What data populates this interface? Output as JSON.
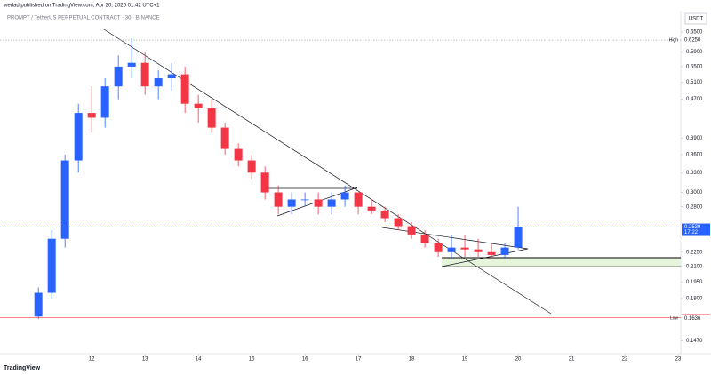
{
  "header": {
    "publisher": "wedad published on TradingView.com, Apr 20, 2025 01:42 UTC+1",
    "footer": "TradingView"
  },
  "chart_data": {
    "type": "candlestick",
    "title": "PROMPT / TetherUS PERPETUAL CONTRACT · 30 · BINANCE",
    "currency": "USDT",
    "log_scale": true,
    "up_color": "#2962ff",
    "down_color": "#f23645",
    "x": [
      11,
      11.25,
      11.5,
      11.75,
      12,
      12.25,
      12.5,
      12.75,
      13,
      13.25,
      13.5,
      13.75,
      14,
      14.25,
      14.5,
      14.75,
      15,
      15.25,
      15.5,
      15.75,
      16,
      16.25,
      16.5,
      16.75,
      17,
      17.25,
      17.5,
      17.75,
      18,
      18.25,
      18.5,
      18.75,
      19,
      19.25,
      19.5,
      19.75,
      20
    ],
    "open": [
      0.165,
      0.185,
      0.24,
      0.35,
      0.44,
      0.43,
      0.5,
      0.55,
      0.56,
      0.5,
      0.52,
      0.53,
      0.46,
      0.45,
      0.41,
      0.37,
      0.35,
      0.33,
      0.3,
      0.28,
      0.29,
      0.29,
      0.28,
      0.29,
      0.3,
      0.28,
      0.275,
      0.265,
      0.255,
      0.245,
      0.235,
      0.225,
      0.23,
      0.228,
      0.225,
      0.222,
      0.23
    ],
    "high": [
      0.19,
      0.25,
      0.36,
      0.46,
      0.5,
      0.52,
      0.58,
      0.63,
      0.59,
      0.54,
      0.56,
      0.55,
      0.48,
      0.47,
      0.42,
      0.38,
      0.36,
      0.34,
      0.31,
      0.3,
      0.3,
      0.3,
      0.3,
      0.31,
      0.3,
      0.29,
      0.28,
      0.27,
      0.26,
      0.25,
      0.24,
      0.245,
      0.245,
      0.24,
      0.235,
      0.235,
      0.28
    ],
    "low": [
      0.163,
      0.18,
      0.23,
      0.33,
      0.4,
      0.41,
      0.47,
      0.52,
      0.48,
      0.47,
      0.49,
      0.44,
      0.42,
      0.4,
      0.36,
      0.34,
      0.32,
      0.29,
      0.27,
      0.27,
      0.28,
      0.27,
      0.27,
      0.28,
      0.27,
      0.27,
      0.26,
      0.25,
      0.24,
      0.23,
      0.22,
      0.218,
      0.22,
      0.22,
      0.218,
      0.218,
      0.228
    ],
    "close": [
      0.185,
      0.24,
      0.35,
      0.44,
      0.43,
      0.5,
      0.55,
      0.56,
      0.5,
      0.52,
      0.53,
      0.46,
      0.45,
      0.41,
      0.37,
      0.35,
      0.33,
      0.3,
      0.28,
      0.29,
      0.29,
      0.28,
      0.29,
      0.3,
      0.28,
      0.275,
      0.265,
      0.255,
      0.245,
      0.235,
      0.225,
      0.23,
      0.228,
      0.225,
      0.222,
      0.23,
      0.2539
    ],
    "xlim": [
      10.28,
      23.05
    ],
    "xticks": [
      12,
      13,
      14,
      15,
      16,
      17,
      18,
      19,
      20,
      21,
      22,
      23
    ],
    "ylim": [
      0.138,
      0.72
    ],
    "yticks": [
      {
        "value": 0.65,
        "label": "0.6500"
      },
      {
        "value": 0.59,
        "label": "0.5900"
      },
      {
        "value": 0.55,
        "label": "0.5500"
      },
      {
        "value": 0.51,
        "label": "0.5100"
      },
      {
        "value": 0.47,
        "label": "0.4700"
      },
      {
        "value": 0.39,
        "label": "0.3900"
      },
      {
        "value": 0.36,
        "label": "0.3600"
      },
      {
        "value": 0.33,
        "label": "0.3300"
      },
      {
        "value": 0.3,
        "label": "0.3000"
      },
      {
        "value": 0.28,
        "label": "0.2800"
      },
      {
        "value": 0.225,
        "label": "0.2250"
      },
      {
        "value": 0.21,
        "label": "0.2100"
      },
      {
        "value": 0.195,
        "label": "0.1950"
      },
      {
        "value": 0.18,
        "label": "0.1800"
      },
      {
        "value": 0.147,
        "label": "0.1470"
      }
    ],
    "price_labels": [
      {
        "name": "High",
        "value": 0.625,
        "label": "0.6250",
        "color": "#ffffff",
        "line": "#9598a1"
      },
      {
        "value": 0.2539,
        "label": "0.2539",
        "sublabel": "17:22",
        "color": "#2962ff",
        "line": "#2962ff"
      },
      {
        "value": 0.1641,
        "label": "0.1641",
        "color": "#f23645",
        "line": "#f23645"
      },
      {
        "name": "Low",
        "value": 0.1636,
        "label": "0.1636",
        "color": "#ffffff"
      }
    ]
  }
}
